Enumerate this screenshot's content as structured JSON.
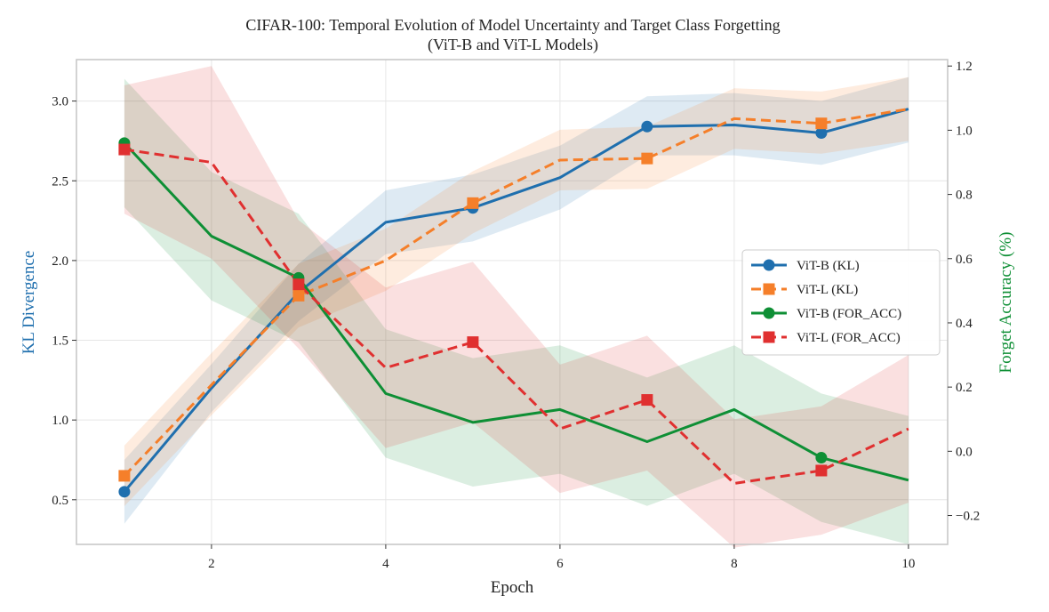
{
  "chart_data": {
    "type": "line",
    "title": "CIFAR-100: Temporal Evolution of Model Uncertainty and Target Class Forgetting",
    "subtitle": "(ViT-B and ViT-L Models)",
    "xlabel": "Epoch",
    "ylabel_left": "KL Divergence",
    "ylabel_right": "Forget Accuracy (%)",
    "x": [
      1,
      2,
      3,
      4,
      5,
      6,
      7,
      8,
      9,
      10
    ],
    "x_ticks": [
      "2",
      "4",
      "6",
      "8",
      "10"
    ],
    "x_tick_values": [
      2,
      4,
      6,
      8,
      10
    ],
    "xlim": [
      0.45,
      10.45
    ],
    "ylim_left": [
      0.22,
      3.26
    ],
    "ylim_right": [
      -0.29,
      1.22
    ],
    "y_ticks_left": [
      "0.5",
      "1.0",
      "1.5",
      "2.0",
      "2.5",
      "3.0"
    ],
    "y_tick_values_left": [
      0.5,
      1.0,
      1.5,
      2.0,
      2.5,
      3.0
    ],
    "y_ticks_right": [
      "−0.2",
      "0.0",
      "0.2",
      "0.4",
      "0.6",
      "0.8",
      "1.0",
      "1.2"
    ],
    "y_tick_values_right": [
      -0.2,
      0.0,
      0.2,
      0.4,
      0.6,
      0.8,
      1.0,
      1.2
    ],
    "grid": true,
    "legend_position": "center-right",
    "series": [
      {
        "name": "ViT-B (KL)",
        "axis": "left",
        "color": "#1f6fae",
        "linestyle": "solid",
        "marker": "circle",
        "marker_epochs": [
          1,
          3,
          5,
          7,
          9
        ],
        "values": [
          0.55,
          1.2,
          1.8,
          2.24,
          2.33,
          2.52,
          2.84,
          2.85,
          2.8,
          2.95
        ],
        "band_low": [
          0.35,
          1.05,
          1.62,
          2.04,
          2.12,
          2.32,
          2.66,
          2.66,
          2.6,
          2.74
        ],
        "band_high": [
          0.75,
          1.35,
          1.98,
          2.44,
          2.54,
          2.72,
          3.03,
          3.05,
          3.0,
          3.15
        ]
      },
      {
        "name": "ViT-L (KL)",
        "axis": "left",
        "color": "#f57f2a",
        "linestyle": "dashed",
        "marker": "square",
        "marker_epochs": [
          1,
          3,
          5,
          7,
          9
        ],
        "values": [
          0.65,
          1.22,
          1.78,
          2.0,
          2.36,
          2.63,
          2.64,
          2.89,
          2.86,
          2.95
        ],
        "band_low": [
          0.46,
          1.03,
          1.58,
          1.81,
          2.17,
          2.44,
          2.45,
          2.7,
          2.67,
          2.75
        ],
        "band_high": [
          0.84,
          1.42,
          1.98,
          2.2,
          2.56,
          2.82,
          2.84,
          3.08,
          3.06,
          3.15
        ]
      },
      {
        "name": "ViT-B (FOR_ACC)",
        "axis": "right",
        "color": "#0e8f35",
        "linestyle": "solid",
        "marker": "circle",
        "marker_epochs": [
          1,
          3,
          9
        ],
        "values": [
          0.96,
          0.67,
          0.54,
          0.18,
          0.09,
          0.13,
          0.03,
          0.13,
          -0.02,
          -0.09
        ],
        "band_low": [
          0.76,
          0.47,
          0.34,
          -0.02,
          -0.11,
          -0.07,
          -0.17,
          -0.07,
          -0.22,
          -0.29
        ],
        "band_high": [
          1.16,
          0.87,
          0.74,
          0.38,
          0.29,
          0.33,
          0.23,
          0.33,
          0.18,
          0.11
        ]
      },
      {
        "name": "ViT-L (FOR_ACC)",
        "axis": "right",
        "color": "#e03030",
        "linestyle": "dashed",
        "marker": "square",
        "marker_epochs": [
          1,
          3,
          5,
          7,
          9
        ],
        "values": [
          0.94,
          0.9,
          0.52,
          0.26,
          0.34,
          0.07,
          0.16,
          -0.1,
          -0.06,
          0.07
        ],
        "band_low": [
          0.74,
          0.6,
          0.32,
          0.01,
          0.09,
          -0.13,
          -0.06,
          -0.3,
          -0.26,
          -0.16
        ],
        "band_high": [
          1.14,
          1.2,
          0.72,
          0.51,
          0.59,
          0.27,
          0.36,
          0.1,
          0.14,
          0.3
        ]
      }
    ]
  }
}
